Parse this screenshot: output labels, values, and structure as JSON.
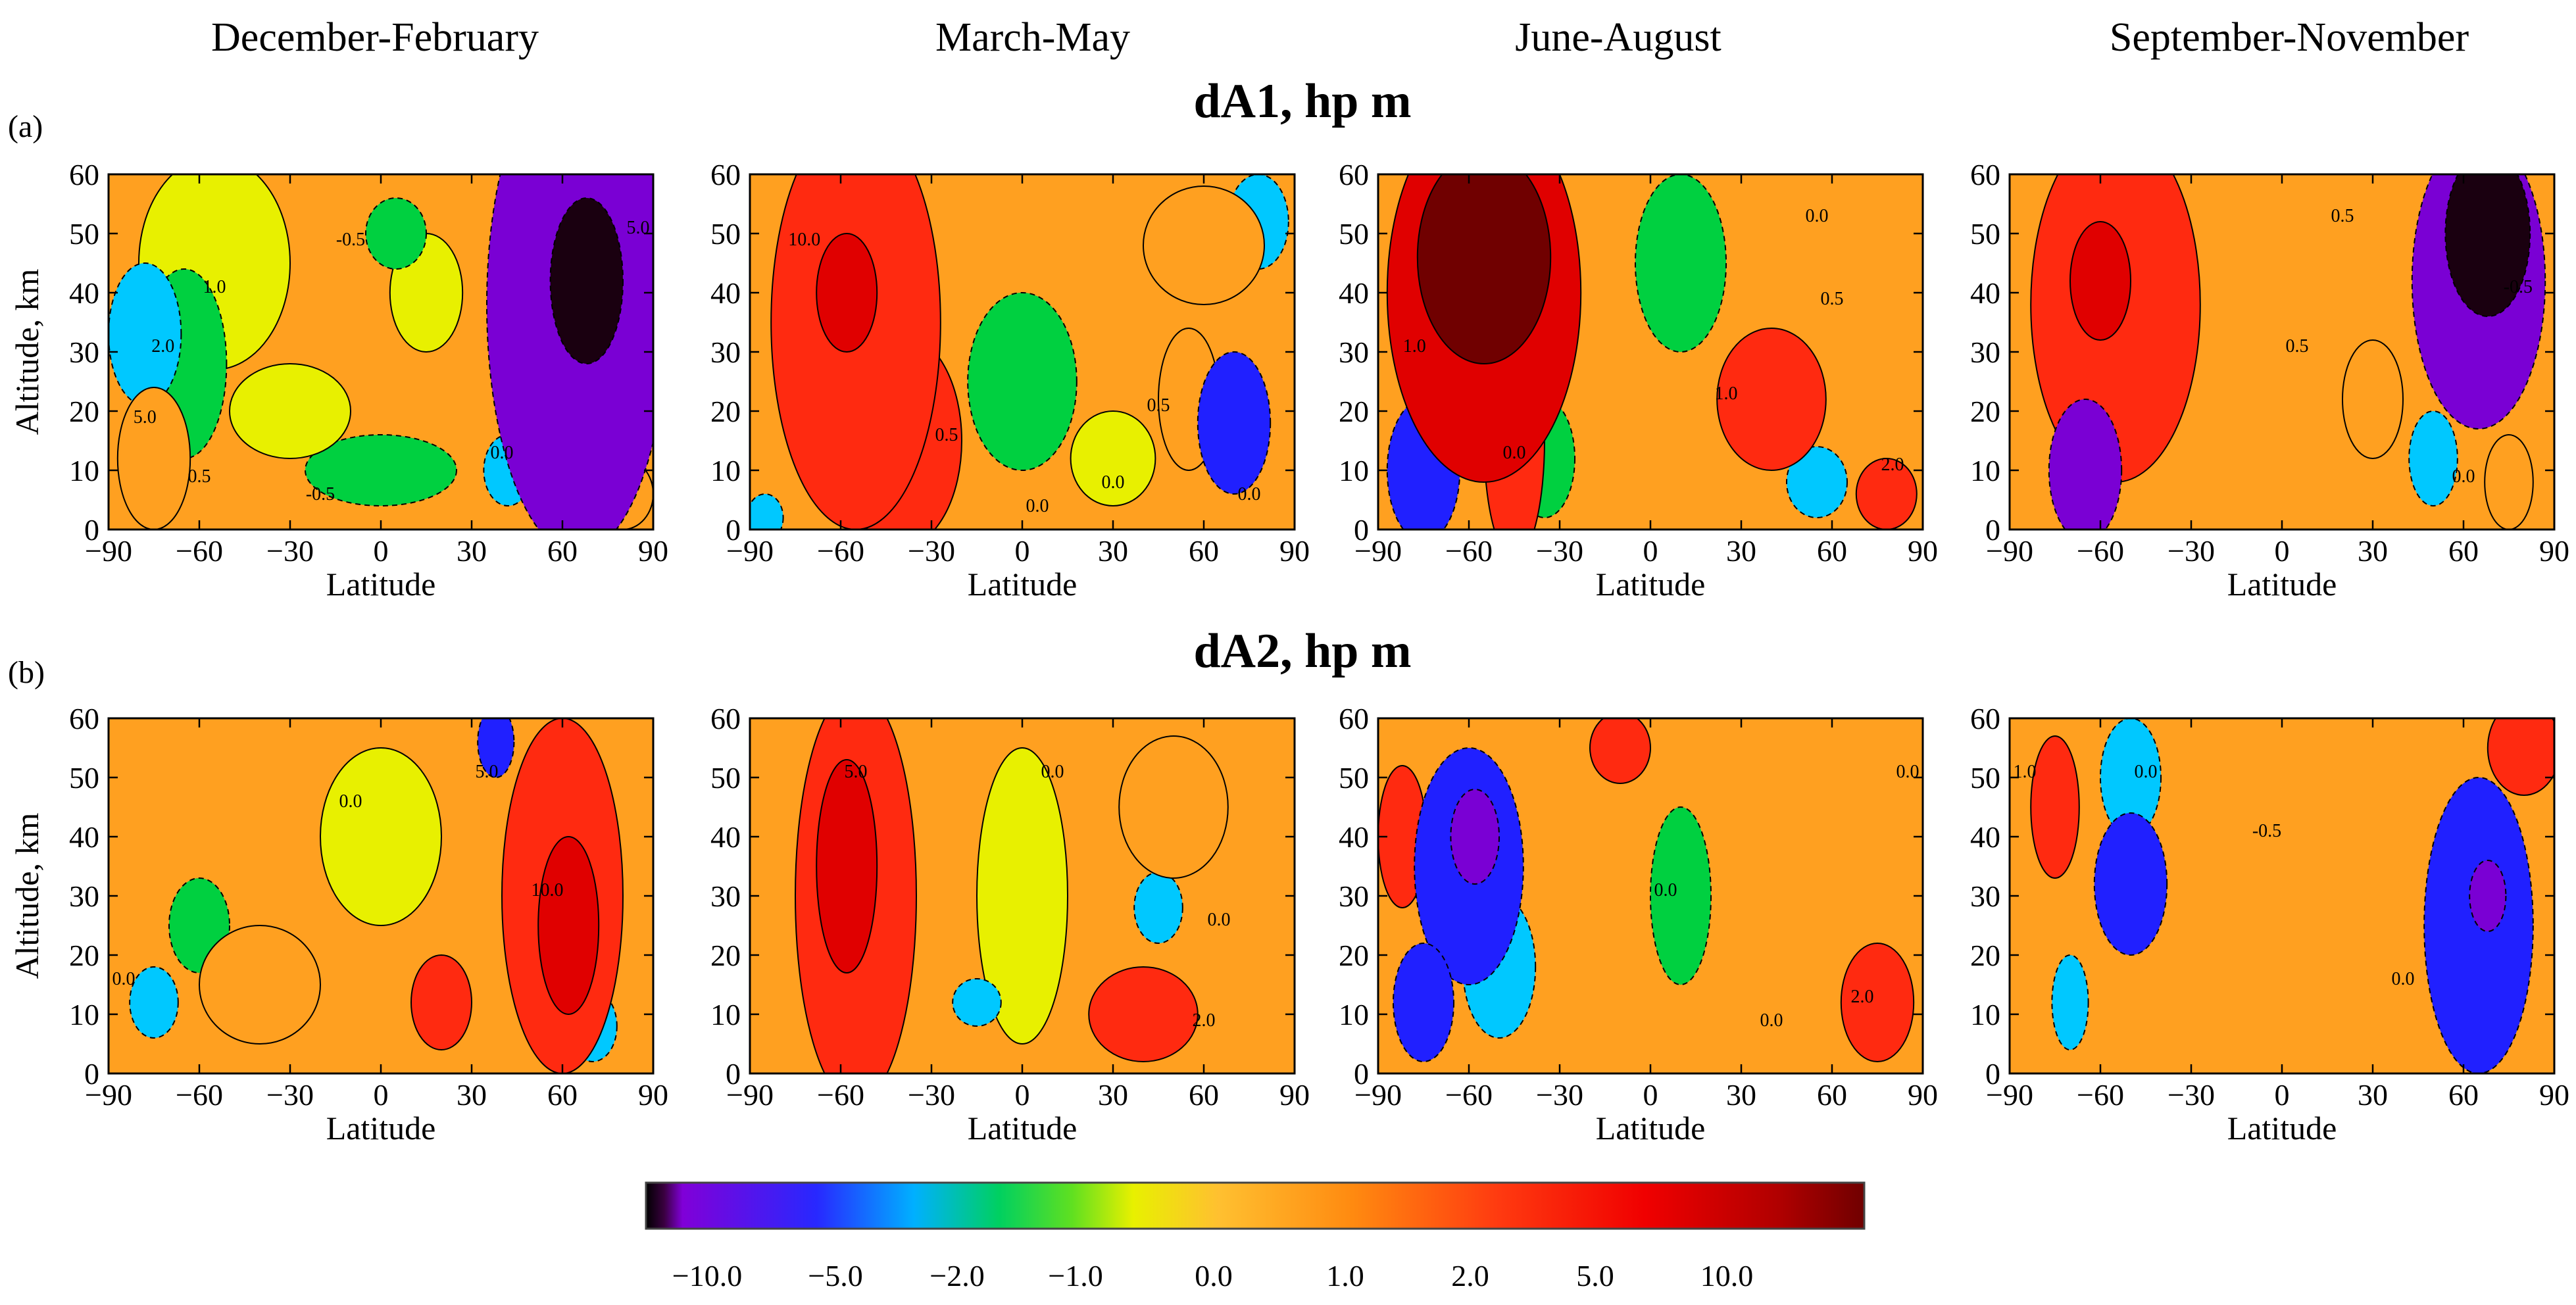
{
  "season_titles": [
    "December-February",
    "March-May",
    "June-August",
    "September-November"
  ],
  "rows": [
    {
      "label": "(a)",
      "title": "dA1,  hp m"
    },
    {
      "label": "(b)",
      "title": "dA2,  hp m"
    }
  ],
  "chart_data": {
    "type": "heatmap",
    "description_units": "hp m",
    "xlabel": "Latitude",
    "ylabel": "Altitude, km",
    "xlim": [
      -90,
      90
    ],
    "ylim": [
      0,
      60
    ],
    "xticks": [
      "−90",
      "−60",
      "−30",
      "0",
      "30",
      "60",
      "90"
    ],
    "xtick_values": [
      -90,
      -60,
      -30,
      0,
      30,
      60,
      90
    ],
    "yticks": [
      "0",
      "10",
      "20",
      "30",
      "40",
      "50",
      "60"
    ],
    "ytick_values": [
      0,
      10,
      20,
      30,
      40,
      50,
      60
    ],
    "colorbar": {
      "tick_labels": [
        "−10.0",
        "−5.0",
        "−2.0",
        "−1.0",
        "0.0",
        "1.0",
        "2.0",
        "5.0",
        "10.0"
      ],
      "levels": [
        -10.0,
        -5.0,
        -2.0,
        -1.0,
        0.0,
        1.0,
        2.0,
        5.0,
        10.0
      ],
      "colors": [
        "#1a0010",
        "#7a00d4",
        "#2020ff",
        "#00c8ff",
        "#00d040",
        "#e8f000",
        "#ffa020",
        "#ff2a10",
        "#e00000",
        "#700000"
      ]
    },
    "panels": [
      {
        "row": "dA1",
        "season": "December-February",
        "blobs": [
          {
            "lat": -55,
            "alt": 45,
            "rx": 25,
            "ry": 18,
            "v": 0.3
          },
          {
            "lat": -78,
            "alt": 33,
            "rx": 12,
            "ry": 12,
            "v": -1.4
          },
          {
            "lat": -65,
            "alt": 28,
            "rx": 14,
            "ry": 16,
            "v": -1.0
          },
          {
            "lat": -75,
            "alt": 12,
            "rx": 12,
            "ry": 12,
            "v": 1.8
          },
          {
            "lat": -30,
            "alt": 20,
            "rx": 20,
            "ry": 8,
            "v": 0.9
          },
          {
            "lat": 0,
            "alt": 10,
            "rx": 25,
            "ry": 6,
            "v": -0.7
          },
          {
            "lat": 15,
            "alt": 40,
            "rx": 12,
            "ry": 10,
            "v": 0.2
          },
          {
            "lat": 5,
            "alt": 50,
            "rx": 10,
            "ry": 6,
            "v": -0.4
          },
          {
            "lat": 65,
            "alt": 38,
            "rx": 30,
            "ry": 42,
            "v": -7.5
          },
          {
            "lat": 68,
            "alt": 42,
            "rx": 12,
            "ry": 14,
            "v": -12.0
          },
          {
            "lat": 42,
            "alt": 10,
            "rx": 8,
            "ry": 6,
            "v": -1.5
          },
          {
            "lat": 80,
            "alt": 6,
            "rx": 10,
            "ry": 6,
            "v": 1.8
          }
        ],
        "contour_labels": [
          {
            "lat": -72,
            "alt": 30,
            "text": "2.0"
          },
          {
            "lat": -78,
            "alt": 18,
            "text": "5.0"
          },
          {
            "lat": -55,
            "alt": 40,
            "text": "1.0"
          },
          {
            "lat": -10,
            "alt": 48,
            "text": "-0.5"
          },
          {
            "lat": -60,
            "alt": 8,
            "text": "0.5"
          },
          {
            "lat": -20,
            "alt": 5,
            "text": "-0.5"
          },
          {
            "lat": 40,
            "alt": 12,
            "text": "0.0"
          },
          {
            "lat": 85,
            "alt": 50,
            "text": "5.0"
          }
        ]
      },
      {
        "row": "dA1",
        "season": "March-May",
        "blobs": [
          {
            "lat": -55,
            "alt": 35,
            "rx": 28,
            "ry": 35,
            "v": 2.8
          },
          {
            "lat": -58,
            "alt": 40,
            "rx": 10,
            "ry": 10,
            "v": 5.5
          },
          {
            "lat": -40,
            "alt": 15,
            "rx": 20,
            "ry": 18,
            "v": 2.2
          },
          {
            "lat": 0,
            "alt": 25,
            "rx": 18,
            "ry": 15,
            "v": -0.2
          },
          {
            "lat": 30,
            "alt": 12,
            "rx": 14,
            "ry": 8,
            "v": 0.0
          },
          {
            "lat": 70,
            "alt": 18,
            "rx": 12,
            "ry": 12,
            "v": -4.0
          },
          {
            "lat": 78,
            "alt": 52,
            "rx": 10,
            "ry": 8,
            "v": -1.5
          },
          {
            "lat": 55,
            "alt": 22,
            "rx": 10,
            "ry": 12,
            "v": 1.6
          },
          {
            "lat": 60,
            "alt": 48,
            "rx": 20,
            "ry": 10,
            "v": 1.5
          },
          {
            "lat": -85,
            "alt": 2,
            "rx": 6,
            "ry": 4,
            "v": -1.2
          }
        ],
        "contour_labels": [
          {
            "lat": -72,
            "alt": 48,
            "text": "10.0"
          },
          {
            "lat": 45,
            "alt": 20,
            "text": "0.5"
          },
          {
            "lat": 30,
            "alt": 7,
            "text": "0.0"
          },
          {
            "lat": 5,
            "alt": 3,
            "text": "0.0"
          },
          {
            "lat": 75,
            "alt": 5,
            "text": "0.0"
          },
          {
            "lat": -25,
            "alt": 15,
            "text": "0.5"
          }
        ]
      },
      {
        "row": "dA1",
        "season": "June-August",
        "blobs": [
          {
            "lat": -55,
            "alt": 40,
            "rx": 32,
            "ry": 32,
            "v": 6.0
          },
          {
            "lat": -55,
            "alt": 46,
            "rx": 22,
            "ry": 18,
            "v": 11.0
          },
          {
            "lat": -45,
            "alt": 15,
            "rx": 10,
            "ry": 20,
            "v": 3.0
          },
          {
            "lat": -75,
            "alt": 10,
            "rx": 12,
            "ry": 12,
            "v": -3.0
          },
          {
            "lat": -35,
            "alt": 12,
            "rx": 10,
            "ry": 10,
            "v": -1.0
          },
          {
            "lat": 40,
            "alt": 22,
            "rx": 18,
            "ry": 12,
            "v": 2.0
          },
          {
            "lat": 55,
            "alt": 8,
            "rx": 10,
            "ry": 6,
            "v": -1.5
          },
          {
            "lat": 78,
            "alt": 6,
            "rx": 10,
            "ry": 6,
            "v": 2.5
          },
          {
            "lat": 10,
            "alt": 45,
            "rx": 15,
            "ry": 15,
            "v": -0.1
          }
        ],
        "contour_labels": [
          {
            "lat": -78,
            "alt": 30,
            "text": "1.0"
          },
          {
            "lat": -45,
            "alt": 12,
            "text": "0.0"
          },
          {
            "lat": 25,
            "alt": 22,
            "text": "1.0"
          },
          {
            "lat": 60,
            "alt": 38,
            "text": "0.5"
          },
          {
            "lat": 55,
            "alt": 52,
            "text": "0.0"
          },
          {
            "lat": 80,
            "alt": 10,
            "text": "2.0"
          }
        ]
      },
      {
        "row": "dA1",
        "season": "September-November",
        "blobs": [
          {
            "lat": -55,
            "alt": 38,
            "rx": 28,
            "ry": 30,
            "v": 4.5
          },
          {
            "lat": -60,
            "alt": 42,
            "rx": 10,
            "ry": 10,
            "v": 7.0
          },
          {
            "lat": -65,
            "alt": 10,
            "rx": 12,
            "ry": 12,
            "v": -6.0
          },
          {
            "lat": 65,
            "alt": 42,
            "rx": 22,
            "ry": 25,
            "v": -7.0
          },
          {
            "lat": 68,
            "alt": 50,
            "rx": 14,
            "ry": 14,
            "v": -14.0
          },
          {
            "lat": 30,
            "alt": 22,
            "rx": 10,
            "ry": 10,
            "v": 1.8
          },
          {
            "lat": 50,
            "alt": 12,
            "rx": 8,
            "ry": 8,
            "v": -1.5
          },
          {
            "lat": 75,
            "alt": 8,
            "rx": 8,
            "ry": 8,
            "v": 1.5
          }
        ],
        "contour_labels": [
          {
            "lat": 20,
            "alt": 52,
            "text": "0.5"
          },
          {
            "lat": 5,
            "alt": 30,
            "text": "0.5"
          },
          {
            "lat": 78,
            "alt": 40,
            "text": "-0.5"
          },
          {
            "lat": 60,
            "alt": 8,
            "text": "0.0"
          }
        ]
      },
      {
        "row": "dA2",
        "season": "December-February",
        "blobs": [
          {
            "lat": 60,
            "alt": 30,
            "rx": 20,
            "ry": 30,
            "v": 4.0
          },
          {
            "lat": 62,
            "alt": 25,
            "rx": 10,
            "ry": 15,
            "v": 8.0
          },
          {
            "lat": 38,
            "alt": 56,
            "rx": 6,
            "ry": 6,
            "v": -2.5
          },
          {
            "lat": -75,
            "alt": 12,
            "rx": 8,
            "ry": 6,
            "v": -1.2
          },
          {
            "lat": -60,
            "alt": 25,
            "rx": 10,
            "ry": 8,
            "v": -1.0
          },
          {
            "lat": -40,
            "alt": 15,
            "rx": 20,
            "ry": 10,
            "v": 1.2
          },
          {
            "lat": 20,
            "alt": 12,
            "rx": 10,
            "ry": 8,
            "v": 2.0
          },
          {
            "lat": 70,
            "alt": 8,
            "rx": 8,
            "ry": 6,
            "v": -1.2
          },
          {
            "lat": 0,
            "alt": 40,
            "rx": 20,
            "ry": 15,
            "v": 0.0
          }
        ],
        "contour_labels": [
          {
            "lat": 55,
            "alt": 30,
            "text": "10.0"
          },
          {
            "lat": -10,
            "alt": 45,
            "text": "0.0"
          },
          {
            "lat": -85,
            "alt": 15,
            "text": "0.0"
          },
          {
            "lat": 35,
            "alt": 50,
            "text": "5.0"
          }
        ]
      },
      {
        "row": "dA2",
        "season": "March-May",
        "blobs": [
          {
            "lat": -55,
            "alt": 30,
            "rx": 20,
            "ry": 35,
            "v": 4.0
          },
          {
            "lat": -58,
            "alt": 35,
            "rx": 10,
            "ry": 18,
            "v": 6.0
          },
          {
            "lat": 45,
            "alt": 28,
            "rx": 8,
            "ry": 6,
            "v": -1.5
          },
          {
            "lat": 50,
            "alt": 45,
            "rx": 18,
            "ry": 12,
            "v": 1.8
          },
          {
            "lat": 40,
            "alt": 10,
            "rx": 18,
            "ry": 8,
            "v": 2.2
          },
          {
            "lat": 0,
            "alt": 30,
            "rx": 15,
            "ry": 25,
            "v": 0.1
          },
          {
            "lat": -15,
            "alt": 12,
            "rx": 8,
            "ry": 4,
            "v": -1.2
          }
        ],
        "contour_labels": [
          {
            "lat": -55,
            "alt": 50,
            "text": "5.0"
          },
          {
            "lat": 60,
            "alt": 8,
            "text": "2.0"
          },
          {
            "lat": 65,
            "alt": 25,
            "text": "0.0"
          },
          {
            "lat": 10,
            "alt": 50,
            "text": "0.0"
          }
        ]
      },
      {
        "row": "dA2",
        "season": "June-August",
        "blobs": [
          {
            "lat": -60,
            "alt": 35,
            "rx": 18,
            "ry": 20,
            "v": -3.5
          },
          {
            "lat": -58,
            "alt": 40,
            "rx": 8,
            "ry": 8,
            "v": -10.0
          },
          {
            "lat": -75,
            "alt": 12,
            "rx": 10,
            "ry": 10,
            "v": -4.0
          },
          {
            "lat": -50,
            "alt": 18,
            "rx": 12,
            "ry": 12,
            "v": -2.0
          },
          {
            "lat": -82,
            "alt": 40,
            "rx": 8,
            "ry": 12,
            "v": 2.0
          },
          {
            "lat": 75,
            "alt": 12,
            "rx": 12,
            "ry": 10,
            "v": 2.0
          },
          {
            "lat": 10,
            "alt": 30,
            "rx": 10,
            "ry": 15,
            "v": -0.3
          },
          {
            "lat": -10,
            "alt": 55,
            "rx": 10,
            "ry": 6,
            "v": 2.0
          }
        ],
        "contour_labels": [
          {
            "lat": 5,
            "alt": 30,
            "text": "0.0"
          },
          {
            "lat": 85,
            "alt": 50,
            "text": "0.0"
          },
          {
            "lat": 40,
            "alt": 8,
            "text": "0.0"
          },
          {
            "lat": 70,
            "alt": 12,
            "text": "2.0"
          }
        ]
      },
      {
        "row": "dA2",
        "season": "September-November",
        "blobs": [
          {
            "lat": 65,
            "alt": 25,
            "rx": 18,
            "ry": 25,
            "v": -4.0
          },
          {
            "lat": 68,
            "alt": 30,
            "rx": 6,
            "ry": 6,
            "v": -6.0
          },
          {
            "lat": -50,
            "alt": 32,
            "rx": 12,
            "ry": 12,
            "v": -3.0
          },
          {
            "lat": -50,
            "alt": 50,
            "rx": 10,
            "ry": 10,
            "v": -2.0
          },
          {
            "lat": -75,
            "alt": 45,
            "rx": 8,
            "ry": 12,
            "v": 2.0
          },
          {
            "lat": 80,
            "alt": 55,
            "rx": 12,
            "ry": 8,
            "v": 2.0
          },
          {
            "lat": -70,
            "alt": 12,
            "rx": 6,
            "ry": 8,
            "v": -1.5
          }
        ],
        "contour_labels": [
          {
            "lat": -45,
            "alt": 50,
            "text": "0.0"
          },
          {
            "lat": -5,
            "alt": 40,
            "text": "-0.5"
          },
          {
            "lat": 40,
            "alt": 15,
            "text": "0.0"
          },
          {
            "lat": -85,
            "alt": 50,
            "text": "1.0"
          }
        ]
      }
    ]
  }
}
